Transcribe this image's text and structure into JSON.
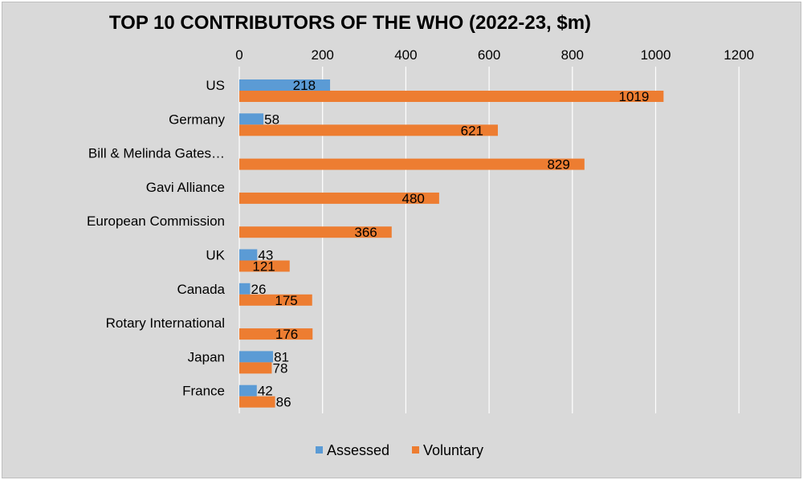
{
  "chart_data": {
    "type": "bar",
    "orientation": "horizontal",
    "title": "TOP 10 CONTRIBUTORS OF THE WHO (2022-23, $m)",
    "categories": [
      "US",
      "Germany",
      "Bill & Melinda Gates…",
      "Gavi Alliance",
      "European Commission",
      "UK",
      "Canada",
      "Rotary International",
      "Japan",
      "France"
    ],
    "series": [
      {
        "name": "Assessed",
        "color": "#5b9bd5",
        "values": [
          218,
          58,
          null,
          null,
          null,
          43,
          26,
          null,
          81,
          42
        ]
      },
      {
        "name": "Voluntary",
        "color": "#ed7d31",
        "values": [
          1019,
          621,
          829,
          480,
          366,
          121,
          175,
          176,
          78,
          86
        ]
      }
    ],
    "xlim": [
      0,
      1200
    ],
    "xticks": [
      "0",
      "200",
      "400",
      "600",
      "800",
      "1000",
      "1200"
    ],
    "x_axis_position": "top",
    "grid": true,
    "legend_position": "bottom"
  }
}
